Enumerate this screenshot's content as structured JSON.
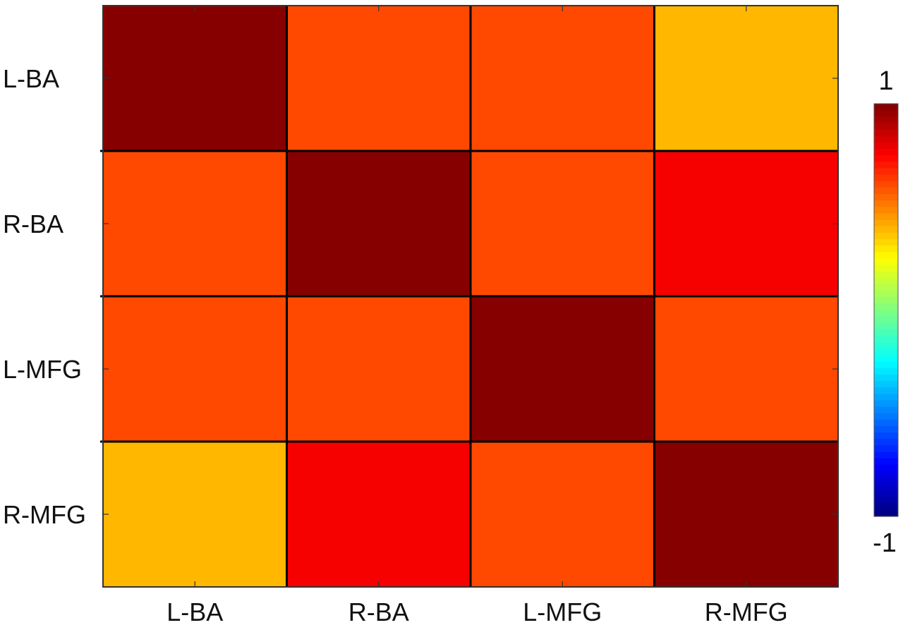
{
  "chart_data": {
    "type": "heatmap",
    "title": "",
    "xlabel": "",
    "ylabel": "",
    "x_categories": [
      "L-BA",
      "R-BA",
      "L-MFG",
      "R-MFG"
    ],
    "y_categories": [
      "L-BA",
      "R-BA",
      "L-MFG",
      "R-MFG"
    ],
    "values": [
      [
        1.0,
        0.62,
        0.62,
        0.38
      ],
      [
        0.62,
        1.0,
        0.6,
        0.78
      ],
      [
        0.62,
        0.6,
        1.0,
        0.62
      ],
      [
        0.38,
        0.78,
        0.62,
        1.0
      ]
    ],
    "color_range": [
      -1,
      1
    ],
    "colormap": "jet",
    "colorbar": {
      "max_label": "1",
      "min_label": "-1",
      "placement": "right"
    },
    "grid": true
  }
}
